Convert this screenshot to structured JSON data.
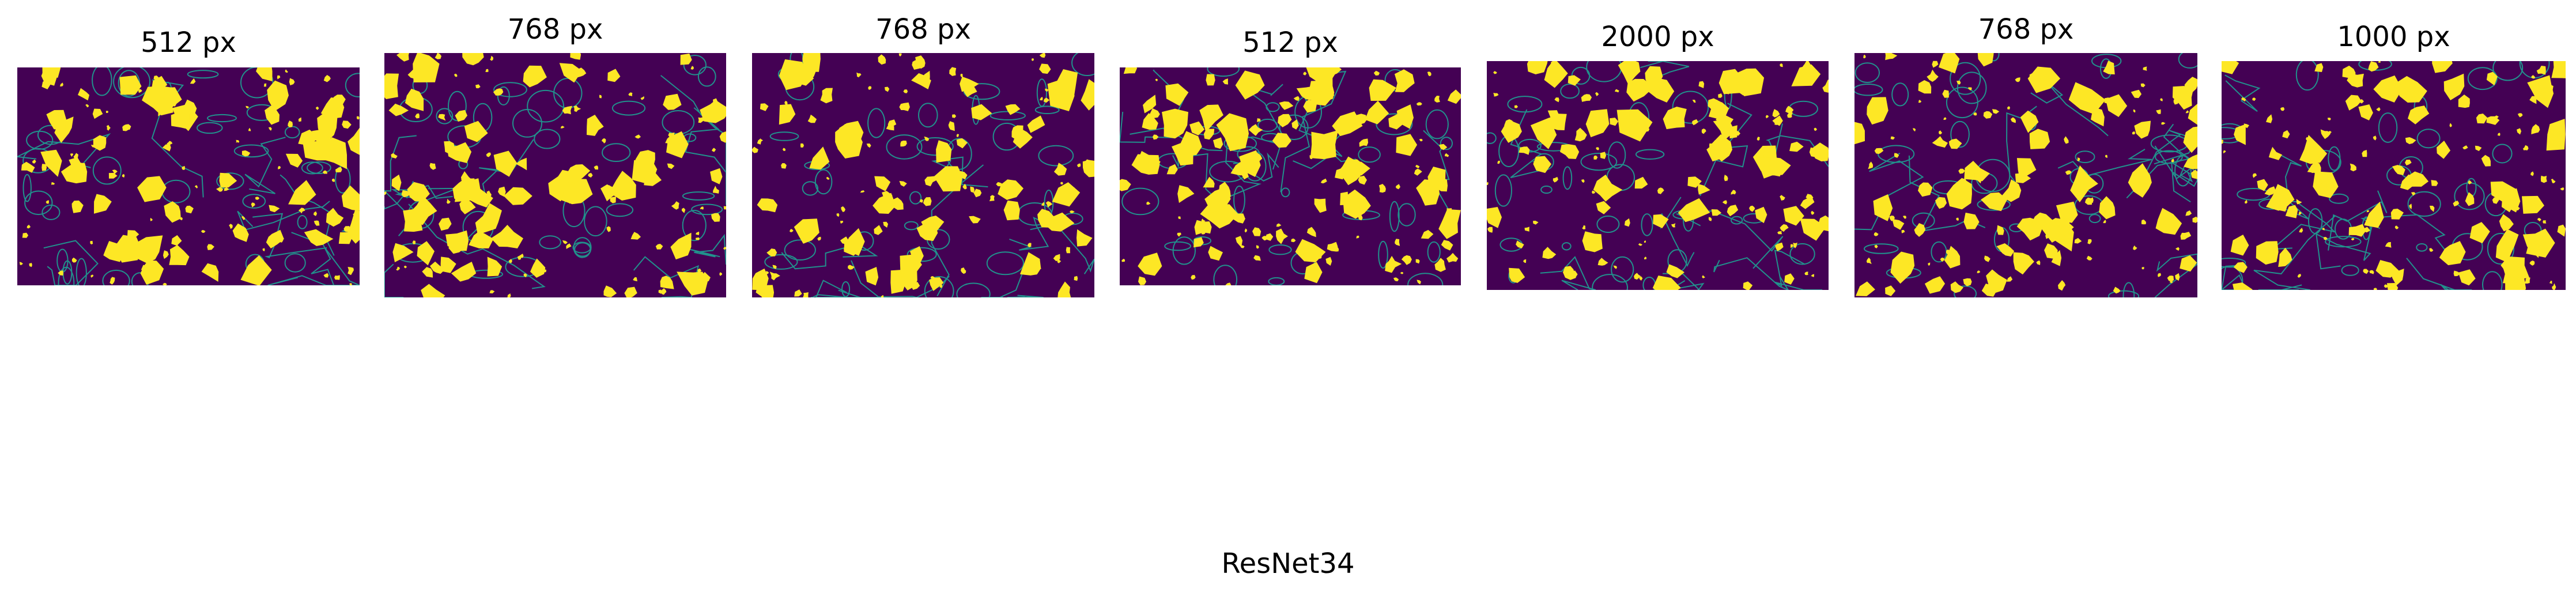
{
  "colors": {
    "background_class": "#440154",
    "foreground_class": "#fde725",
    "edge_class": "#21918c"
  },
  "panels": [
    {
      "title": "512 px"
    },
    {
      "title": "768 px"
    },
    {
      "title": "768 px"
    },
    {
      "title": "512 px"
    },
    {
      "title": "2000 px"
    },
    {
      "title": "768 px"
    },
    {
      "title": "1000 px"
    }
  ],
  "footer": {
    "title": "ResNet34"
  }
}
